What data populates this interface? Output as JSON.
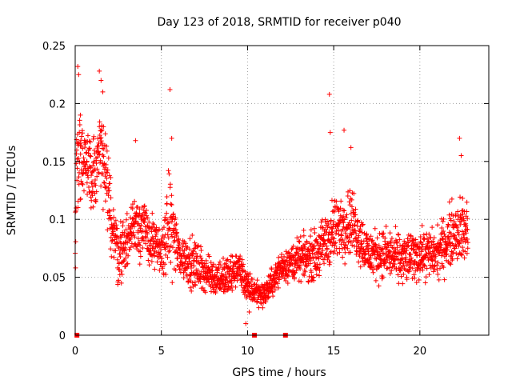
{
  "chart_data": {
    "type": "scatter",
    "title": "Day 123 of 2018, SRMTID for receiver p040",
    "xlabel": "GPS time / hours",
    "ylabel": "SRMTID / TECUs",
    "xlim": [
      0,
      24
    ],
    "ylim": [
      0,
      0.25
    ],
    "xticks": [
      0,
      5,
      10,
      15,
      20
    ],
    "xtick_labels": [
      "0",
      "5",
      "10",
      "15",
      "20"
    ],
    "yticks": [
      0,
      0.05,
      0.1,
      0.15,
      0.2,
      0.25
    ],
    "ytick_labels": [
      "0",
      "0.05",
      "0.1",
      "0.15",
      "0.2",
      "0.25"
    ],
    "grid": true,
    "marker": "+",
    "color": "#ff0000",
    "baseline_markers_x": [
      0.1,
      10.4,
      12.2
    ],
    "series_profile": {
      "name": "SRMTID",
      "x_start": 0.0,
      "x_end": 22.8,
      "sample_interval_hours": 0.01,
      "envelope": [
        [
          0.0,
          0.074,
          0.04
        ],
        [
          0.1,
          0.15,
          0.07
        ],
        [
          0.5,
          0.15,
          0.05
        ],
        [
          1.0,
          0.14,
          0.04
        ],
        [
          1.5,
          0.16,
          0.05
        ],
        [
          2.0,
          0.11,
          0.05
        ],
        [
          2.5,
          0.07,
          0.04
        ],
        [
          3.0,
          0.08,
          0.03
        ],
        [
          3.5,
          0.1,
          0.04
        ],
        [
          4.0,
          0.09,
          0.04
        ],
        [
          4.5,
          0.08,
          0.03
        ],
        [
          5.0,
          0.07,
          0.03
        ],
        [
          5.5,
          0.1,
          0.06
        ],
        [
          6.0,
          0.07,
          0.03
        ],
        [
          7.0,
          0.06,
          0.03
        ],
        [
          8.0,
          0.05,
          0.02
        ],
        [
          9.0,
          0.05,
          0.025
        ],
        [
          9.5,
          0.06,
          0.02
        ],
        [
          10.0,
          0.04,
          0.02
        ],
        [
          11.0,
          0.035,
          0.015
        ],
        [
          12.0,
          0.06,
          0.02
        ],
        [
          13.0,
          0.065,
          0.025
        ],
        [
          14.0,
          0.07,
          0.03
        ],
        [
          15.0,
          0.09,
          0.04
        ],
        [
          16.0,
          0.1,
          0.04
        ],
        [
          17.0,
          0.07,
          0.03
        ],
        [
          18.0,
          0.07,
          0.03
        ],
        [
          19.0,
          0.065,
          0.03
        ],
        [
          20.0,
          0.07,
          0.03
        ],
        [
          21.0,
          0.07,
          0.03
        ],
        [
          22.0,
          0.09,
          0.04
        ],
        [
          22.8,
          0.09,
          0.04
        ]
      ],
      "spikes": [
        [
          0.15,
          0.232
        ],
        [
          0.2,
          0.225
        ],
        [
          0.3,
          0.19
        ],
        [
          1.4,
          0.228
        ],
        [
          1.5,
          0.22
        ],
        [
          1.6,
          0.21
        ],
        [
          5.5,
          0.212
        ],
        [
          5.6,
          0.17
        ],
        [
          14.75,
          0.208
        ],
        [
          14.8,
          0.175
        ],
        [
          15.6,
          0.177
        ],
        [
          16.0,
          0.162
        ],
        [
          22.3,
          0.17
        ],
        [
          22.4,
          0.155
        ],
        [
          3.5,
          0.168
        ],
        [
          9.9,
          0.01
        ],
        [
          10.1,
          0.02
        ]
      ]
    }
  }
}
